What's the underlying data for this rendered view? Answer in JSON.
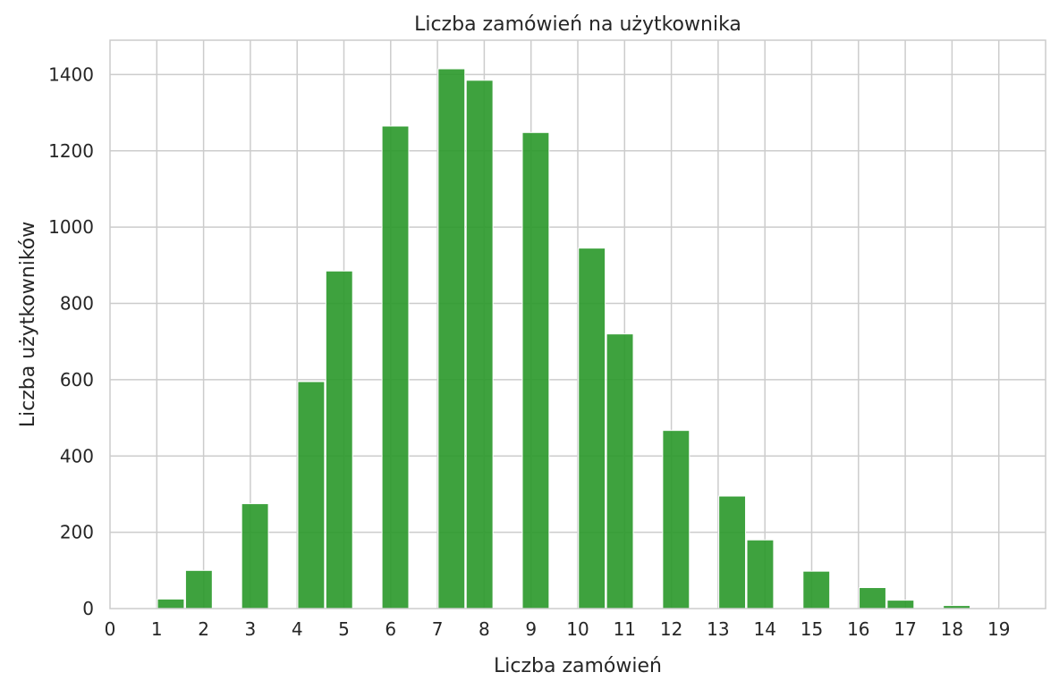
{
  "chart_data": {
    "type": "bar",
    "title": "Liczba zamówień na użytkownika",
    "xlabel": "Liczba zamówień",
    "ylabel": "Liczba użytkowników",
    "xlim": [
      0,
      20
    ],
    "ylim": [
      0,
      1490
    ],
    "xticks": [
      "0",
      "1",
      "2",
      "3",
      "4",
      "5",
      "6",
      "7",
      "8",
      "9",
      "10",
      "11",
      "12",
      "13",
      "14",
      "15",
      "16",
      "17",
      "18",
      "19"
    ],
    "yticks": [
      "0",
      "200",
      "400",
      "600",
      "800",
      "1000",
      "1200",
      "1400"
    ],
    "grid": true,
    "legend": "none",
    "bar_color": "#2e9a2e",
    "bins": [
      {
        "x0": 1.0,
        "x1": 1.6,
        "value": 25
      },
      {
        "x0": 1.6,
        "x2": 0,
        "x1": 2.2,
        "value": 100
      },
      {
        "x0": 2.8,
        "x1": 3.4,
        "value": 275
      },
      {
        "x0": 4.0,
        "x1": 4.6,
        "value": 595
      },
      {
        "x0": 4.6,
        "x1": 5.2,
        "value": 885
      },
      {
        "x0": 5.8,
        "x1": 6.4,
        "value": 1265
      },
      {
        "x0": 7.0,
        "x1": 7.6,
        "value": 1415
      },
      {
        "x0": 7.6,
        "x1": 8.2,
        "value": 1385
      },
      {
        "x0": 8.8,
        "x1": 9.4,
        "value": 1248
      },
      {
        "x0": 10.0,
        "x1": 10.6,
        "value": 945
      },
      {
        "x0": 10.6,
        "x1": 11.2,
        "value": 720
      },
      {
        "x0": 11.8,
        "x1": 12.4,
        "value": 467
      },
      {
        "x0": 13.0,
        "x1": 13.6,
        "value": 295
      },
      {
        "x0": 13.6,
        "x1": 14.2,
        "value": 180
      },
      {
        "x0": 14.8,
        "x1": 15.4,
        "value": 98
      },
      {
        "x0": 16.0,
        "x1": 16.6,
        "value": 55
      },
      {
        "x0": 16.6,
        "x1": 17.2,
        "value": 22
      },
      {
        "x0": 17.8,
        "x1": 18.4,
        "value": 8
      },
      {
        "x0": 19.0,
        "x1": 19.6,
        "value": 2
      }
    ]
  }
}
